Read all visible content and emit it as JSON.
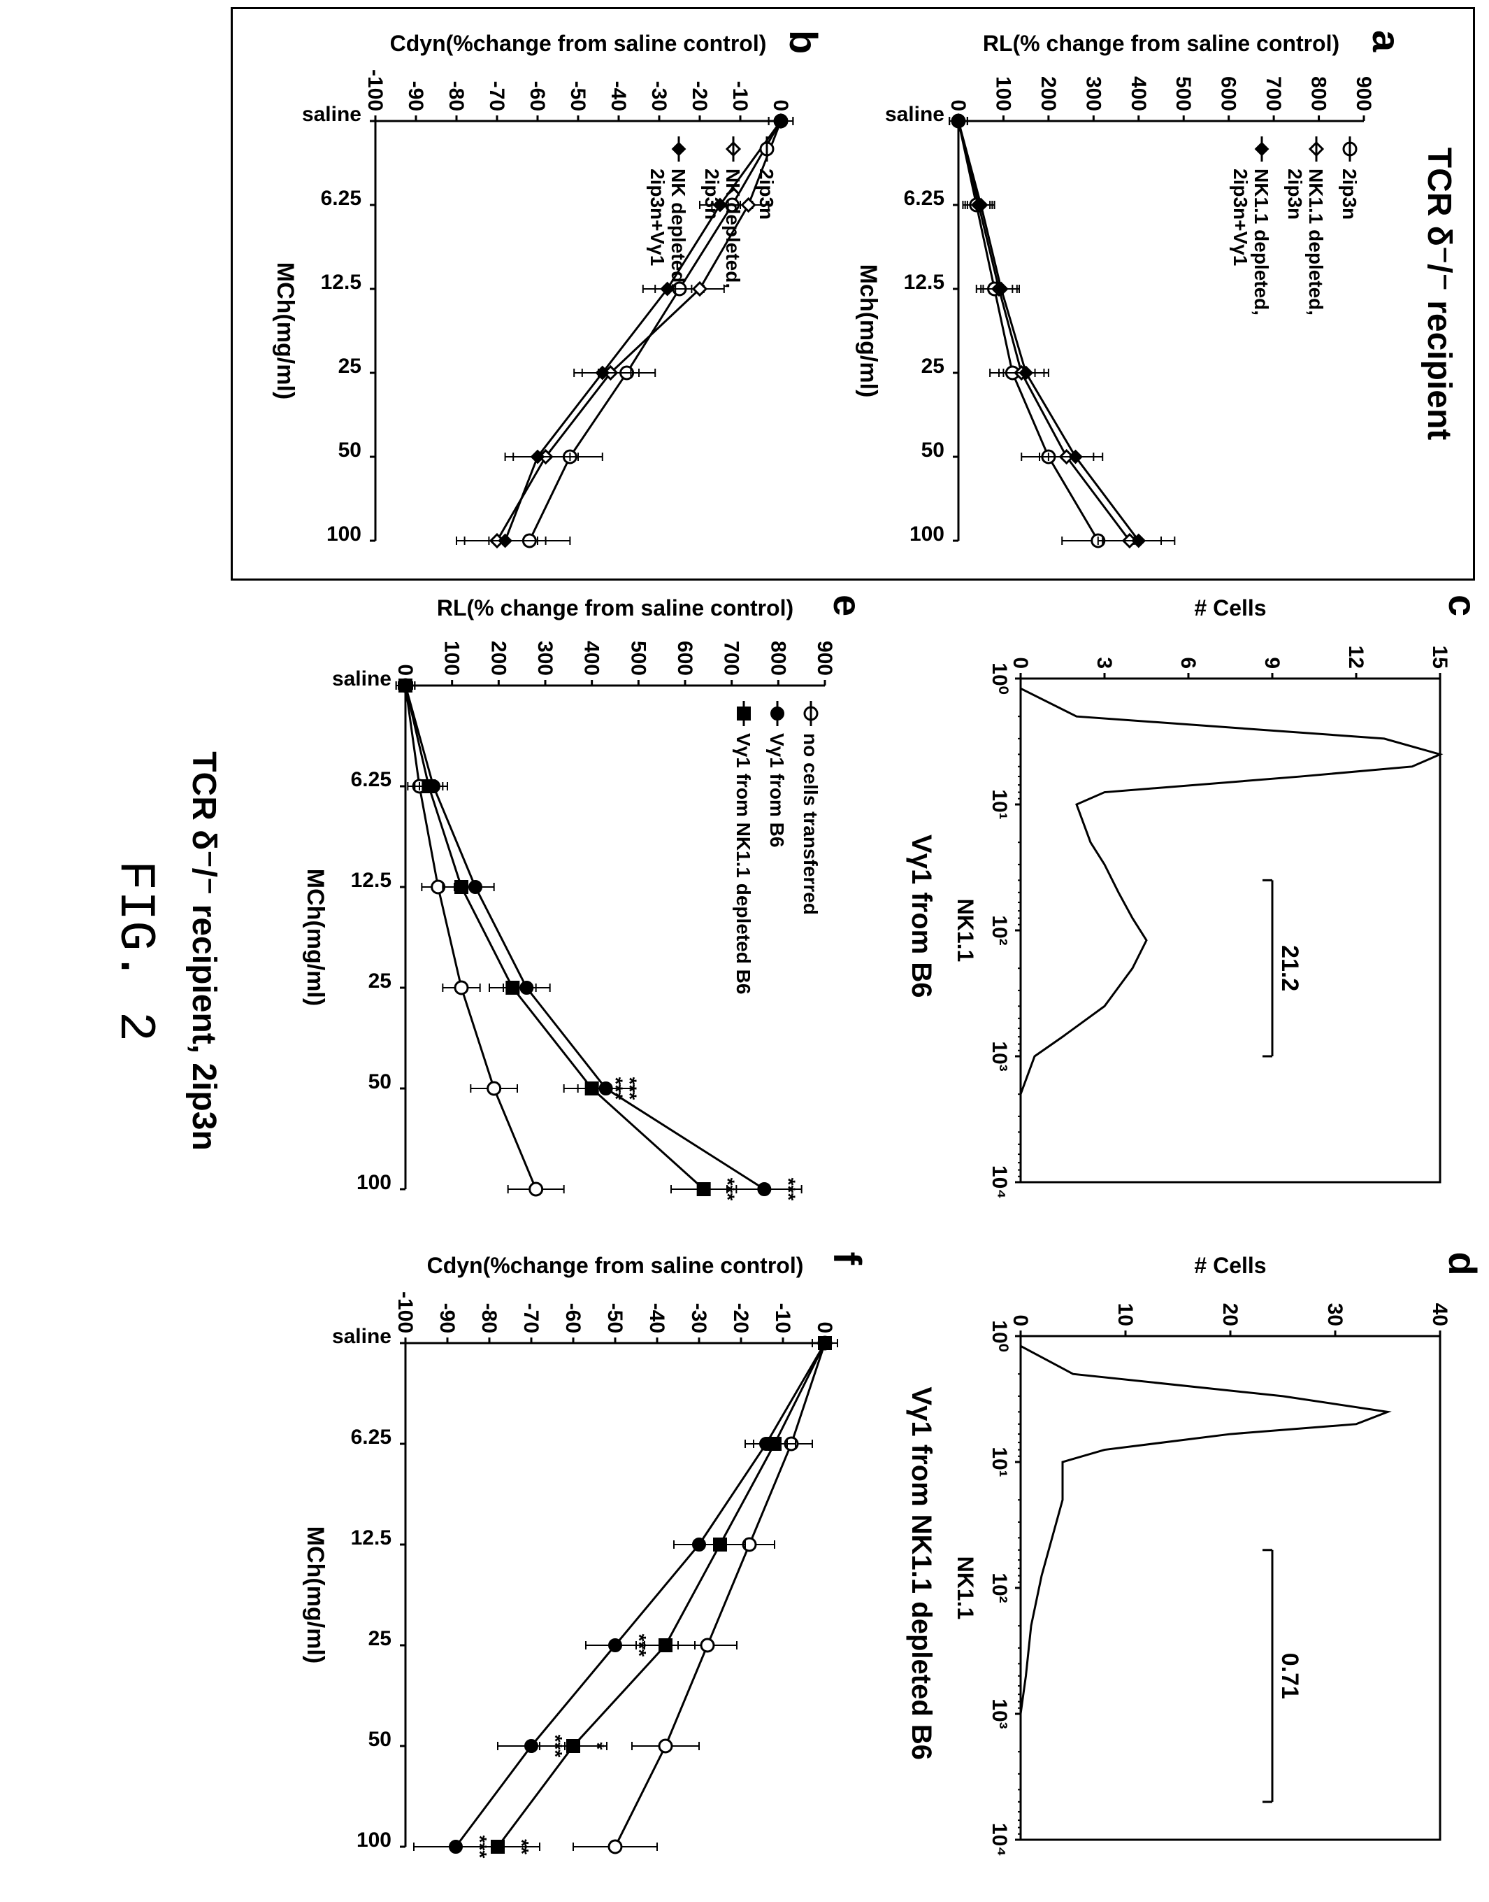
{
  "figure_caption": "FIG. 2",
  "figure_subtitle": "TCR δ⁻/⁻ recipient, 2ip3n",
  "left_box_title": "TCR δ⁻/⁻ recipient",
  "panel_a": {
    "label": "a",
    "type": "line",
    "xlabel": "Mch(mg/ml)",
    "ylabel": "RL(% change from saline control)",
    "ylim": [
      0,
      900
    ],
    "yticks": [
      0,
      100,
      200,
      300,
      400,
      500,
      600,
      700,
      800,
      900
    ],
    "categories": [
      "saline",
      "6.25",
      "12.5",
      "25",
      "50",
      "100"
    ],
    "series": [
      {
        "name": "2ip3n",
        "marker": "open-circle",
        "color": "#000000",
        "values": [
          0,
          40,
          80,
          120,
          200,
          310
        ],
        "err": [
          20,
          30,
          40,
          50,
          60,
          80
        ]
      },
      {
        "name": "NK1.1 depleted, 2ip3n",
        "marker": "open-diamond",
        "color": "#000000",
        "values": [
          0,
          45,
          90,
          140,
          240,
          380
        ],
        "err": [
          20,
          30,
          40,
          50,
          60,
          70
        ]
      },
      {
        "name": "NK1.1 depleted, 2ip3n+Vγ1",
        "marker": "filled-diamond",
        "color": "#000000",
        "values": [
          0,
          50,
          95,
          150,
          260,
          400
        ],
        "err": [
          20,
          30,
          40,
          50,
          60,
          80
        ]
      }
    ],
    "title_fontsize": 34
  },
  "panel_b": {
    "label": "b",
    "type": "line",
    "xlabel": "MCh(mg/ml)",
    "ylabel": "Cdyn(%change from saline control)",
    "ylim": [
      -100,
      0
    ],
    "yticks": [
      0,
      -10,
      -20,
      -30,
      -40,
      -50,
      -60,
      -70,
      -80,
      -90,
      -100
    ],
    "categories": [
      "saline",
      "6.25",
      "12.5",
      "25",
      "50",
      "100"
    ],
    "series": [
      {
        "name": "2ip3n",
        "marker": "open-circle",
        "color": "#000000",
        "values": [
          0,
          -12,
          -25,
          -38,
          -52,
          -62
        ],
        "err": [
          3,
          5,
          6,
          7,
          8,
          10
        ]
      },
      {
        "name": "NK depleted, 2ip3n",
        "marker": "open-diamond",
        "color": "#000000",
        "values": [
          0,
          -8,
          -20,
          -42,
          -58,
          -70
        ],
        "err": [
          3,
          5,
          6,
          7,
          8,
          10
        ]
      },
      {
        "name": "NK depleted, 2ip3n+Vγ1",
        "marker": "filled-diamond",
        "color": "#000000",
        "values": [
          0,
          -15,
          -28,
          -44,
          -60,
          -68
        ],
        "err": [
          3,
          5,
          6,
          7,
          8,
          10
        ]
      }
    ]
  },
  "panel_c": {
    "label": "c",
    "type": "histogram",
    "subtitle": "Vγ1 from B6",
    "xlabel": "NK1.1",
    "ylabel": "# Cells",
    "ylim": [
      0,
      15
    ],
    "yticks": [
      0,
      3,
      6,
      9,
      12,
      15
    ],
    "xscale": "log",
    "xlim": [
      1,
      10000
    ],
    "xticks": [
      1,
      10,
      100,
      1000,
      10000
    ],
    "xtick_labels": [
      "10⁰",
      "10¹",
      "10²",
      "10³",
      "10⁴"
    ],
    "gate_label": "21.2",
    "gate_range": [
      40,
      1000
    ],
    "curve": [
      [
        1,
        0
      ],
      [
        1.2,
        0
      ],
      [
        2,
        2
      ],
      [
        3,
        13
      ],
      [
        4,
        15
      ],
      [
        5,
        14
      ],
      [
        6,
        10
      ],
      [
        8,
        3
      ],
      [
        10,
        2
      ],
      [
        20,
        2.5
      ],
      [
        30,
        3
      ],
      [
        50,
        3.5
      ],
      [
        80,
        4
      ],
      [
        120,
        4.5
      ],
      [
        200,
        4
      ],
      [
        400,
        3
      ],
      [
        700,
        1.5
      ],
      [
        1000,
        0.5
      ],
      [
        2000,
        0
      ],
      [
        10000,
        0
      ]
    ],
    "background_color": "#ffffff"
  },
  "panel_d": {
    "label": "d",
    "type": "histogram",
    "subtitle": "Vγ1 from NK1.1 depleted B6",
    "xlabel": "NK1.1",
    "ylabel": "# Cells",
    "ylim": [
      0,
      40
    ],
    "yticks": [
      0,
      10,
      20,
      30,
      40
    ],
    "xscale": "log",
    "xlim": [
      1,
      10000
    ],
    "xticks": [
      1,
      10,
      100,
      1000,
      10000
    ],
    "xtick_labels": [
      "10⁰",
      "10¹",
      "10²",
      "10³",
      "10⁴"
    ],
    "gate_label": "0.71",
    "gate_range": [
      50,
      5000
    ],
    "curve": [
      [
        1,
        0
      ],
      [
        1.2,
        0
      ],
      [
        2,
        5
      ],
      [
        3,
        25
      ],
      [
        4,
        35
      ],
      [
        5,
        32
      ],
      [
        6,
        20
      ],
      [
        8,
        8
      ],
      [
        10,
        4
      ],
      [
        20,
        4
      ],
      [
        40,
        3
      ],
      [
        80,
        2
      ],
      [
        200,
        1
      ],
      [
        500,
        0.5
      ],
      [
        1000,
        0
      ],
      [
        10000,
        0
      ]
    ]
  },
  "panel_e": {
    "label": "e",
    "type": "line",
    "xlabel": "MCh(mg/ml)",
    "ylabel": "RL(% change from saline control)",
    "ylim": [
      0,
      900
    ],
    "yticks": [
      0,
      100,
      200,
      300,
      400,
      500,
      600,
      700,
      800,
      900
    ],
    "categories": [
      "saline",
      "6.25",
      "12.5",
      "25",
      "50",
      "100"
    ],
    "series": [
      {
        "name": "no cells transferred",
        "marker": "open-circle",
        "color": "#000000",
        "values": [
          0,
          30,
          70,
          120,
          190,
          280
        ],
        "err": [
          15,
          25,
          35,
          40,
          50,
          60
        ],
        "sig": [
          "",
          "",
          "",
          "",
          "",
          ""
        ]
      },
      {
        "name": "Vγ1 from B6",
        "marker": "filled-circle",
        "color": "#000000",
        "values": [
          0,
          60,
          150,
          260,
          430,
          770
        ],
        "err": [
          20,
          30,
          40,
          50,
          60,
          80
        ],
        "sig": [
          "",
          "",
          "",
          "",
          "***",
          "***"
        ]
      },
      {
        "name": "Vγ1 from NK1.1 depleted B6",
        "marker": "filled-square",
        "color": "#000000",
        "values": [
          0,
          50,
          120,
          230,
          400,
          640
        ],
        "err": [
          20,
          30,
          40,
          50,
          60,
          70
        ],
        "sig": [
          "",
          "",
          "",
          "",
          "***",
          "***"
        ]
      }
    ]
  },
  "panel_f": {
    "label": "f",
    "type": "line",
    "xlabel": "MCh(mg/ml)",
    "ylabel": "Cdyn(%change from saline control)",
    "ylim": [
      -100,
      0
    ],
    "yticks": [
      0,
      -10,
      -20,
      -30,
      -40,
      -50,
      -60,
      -70,
      -80,
      -90,
      -100
    ],
    "categories": [
      "saline",
      "6.25",
      "12.5",
      "25",
      "50",
      "100"
    ],
    "series": [
      {
        "name": "no cells transferred",
        "marker": "open-circle",
        "color": "#000000",
        "values": [
          0,
          -8,
          -18,
          -28,
          -38,
          -50
        ],
        "err": [
          3,
          5,
          6,
          7,
          8,
          10
        ],
        "sig": [
          "",
          "",
          "",
          "",
          "",
          ""
        ]
      },
      {
        "name": "Vγ1 from B6",
        "marker": "filled-circle",
        "color": "#000000",
        "values": [
          0,
          -14,
          -30,
          -50,
          -70,
          -88
        ],
        "err": [
          3,
          5,
          6,
          7,
          8,
          10
        ],
        "sig": [
          "",
          "",
          "",
          "***",
          "***",
          "***"
        ]
      },
      {
        "name": "Vγ1 from NK1.1 depleted B6",
        "marker": "filled-square",
        "color": "#000000",
        "values": [
          0,
          -12,
          -25,
          -38,
          -60,
          -78
        ],
        "err": [
          3,
          5,
          6,
          7,
          8,
          10
        ],
        "sig": [
          "",
          "",
          "",
          "",
          "*",
          "**"
        ]
      }
    ]
  }
}
